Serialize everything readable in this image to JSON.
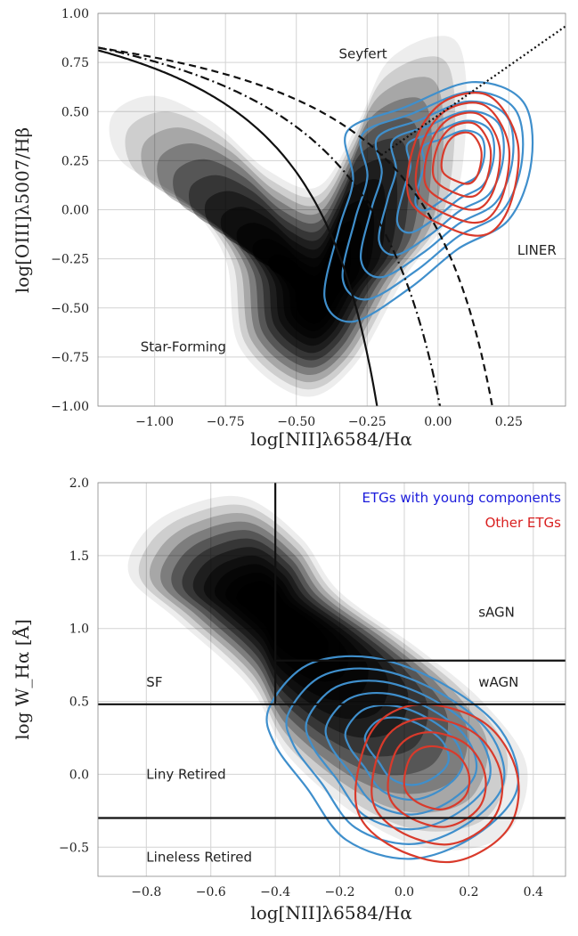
{
  "colors": {
    "young_contours": "#3f8fcc",
    "other_contours": "#d93a2b",
    "kde_fill": "#000000",
    "grid": "#d3d3d3"
  },
  "chart_data": [
    {
      "type": "contour",
      "xlabel": "log[NII]λ6584/Hα",
      "ylabel": "log[OIII]λ5007/Hβ",
      "xlim": [
        -1.2,
        0.45
      ],
      "ylim": [
        -1.0,
        1.0
      ],
      "xticks": [
        -1.0,
        -0.75,
        -0.5,
        -0.25,
        0.0,
        0.25
      ],
      "xticklabels": [
        "−1.00",
        "−0.75",
        "−0.50",
        "−0.25",
        "0.00",
        "0.25"
      ],
      "yticks": [
        -1.0,
        -0.75,
        -0.5,
        -0.25,
        0.0,
        0.25,
        0.5,
        0.75,
        1.0
      ],
      "yticklabels": [
        "−1.00",
        "−0.75",
        "−0.50",
        "−0.25",
        "0.00",
        "0.25",
        "0.50",
        "0.75",
        "1.00"
      ],
      "grid": true,
      "regions": [
        {
          "label": "Seyfert",
          "x": -0.35,
          "y": 0.77
        },
        {
          "label": "LINER",
          "x": 0.28,
          "y": -0.23
        },
        {
          "label": "Star-Forming",
          "x": -1.05,
          "y": -0.72
        }
      ],
      "kde_peak": {
        "x": -0.43,
        "y": -0.47
      },
      "young_components_peak": {
        "x": 0.08,
        "y": 0.28
      },
      "other_etgs_peak": {
        "x": 0.08,
        "y": 0.28
      },
      "curves": [
        {
          "style": "solid",
          "equation": "0.61/(x-0.05)+1.3"
        },
        {
          "style": "dashed",
          "equation": "0.61/(x-0.47)+1.19"
        },
        {
          "style": "dashdot",
          "equation": "0.72/(x-0.32)+1.30"
        },
        {
          "style": "dotted",
          "equation": "1.01x+0.48"
        }
      ]
    },
    {
      "type": "contour",
      "xlabel": "log[NII]λ6584/Hα",
      "ylabel": "log W_Hα [Å]",
      "xlim": [
        -0.95,
        0.5
      ],
      "ylim": [
        -0.7,
        2.0
      ],
      "xticks": [
        -0.8,
        -0.6,
        -0.4,
        -0.2,
        0.0,
        0.2,
        0.4
      ],
      "xticklabels": [
        "−0.8",
        "−0.6",
        "−0.4",
        "−0.2",
        "0.0",
        "0.2",
        "0.4"
      ],
      "yticks": [
        -0.5,
        0.0,
        0.5,
        1.0,
        1.5,
        2.0
      ],
      "yticklabels": [
        "−0.5",
        "0.0",
        "0.5",
        "1.0",
        "1.5",
        "2.0"
      ],
      "grid": true,
      "regions": [
        {
          "label": "sAGN",
          "x": 0.23,
          "y": 1.08
        },
        {
          "label": "wAGN",
          "x": 0.23,
          "y": 0.6
        },
        {
          "label": "SF",
          "x": -0.8,
          "y": 0.6
        },
        {
          "label": "Liny Retired",
          "x": -0.8,
          "y": -0.03
        },
        {
          "label": "Lineless Retired",
          "x": -0.8,
          "y": -0.6
        }
      ],
      "legend_position": "top-right",
      "legend": [
        {
          "label": "ETGs with young components",
          "color": "#1a1adb"
        },
        {
          "label": "Other ETGs",
          "color": "#d92020"
        }
      ],
      "kde_peak": {
        "x": -0.42,
        "y": 1.15
      },
      "young_components_peak": {
        "x": 0.03,
        "y": 0.18
      },
      "other_etgs_peak": {
        "x": 0.1,
        "y": 0.0
      },
      "lines": [
        {
          "style": "solid",
          "kind": "vertical",
          "x": -0.4,
          "y_from": 0.48,
          "y_to": 2.0
        },
        {
          "style": "solid",
          "kind": "horizontal",
          "y": 0.78,
          "x_from": -0.4,
          "x_to": 0.5
        },
        {
          "style": "solid",
          "kind": "horizontal",
          "y": 0.48,
          "x_from": -0.95,
          "x_to": 0.5
        },
        {
          "style": "solid",
          "kind": "horizontal",
          "y": -0.3,
          "x_from": -0.95,
          "x_to": 0.5
        }
      ]
    }
  ]
}
